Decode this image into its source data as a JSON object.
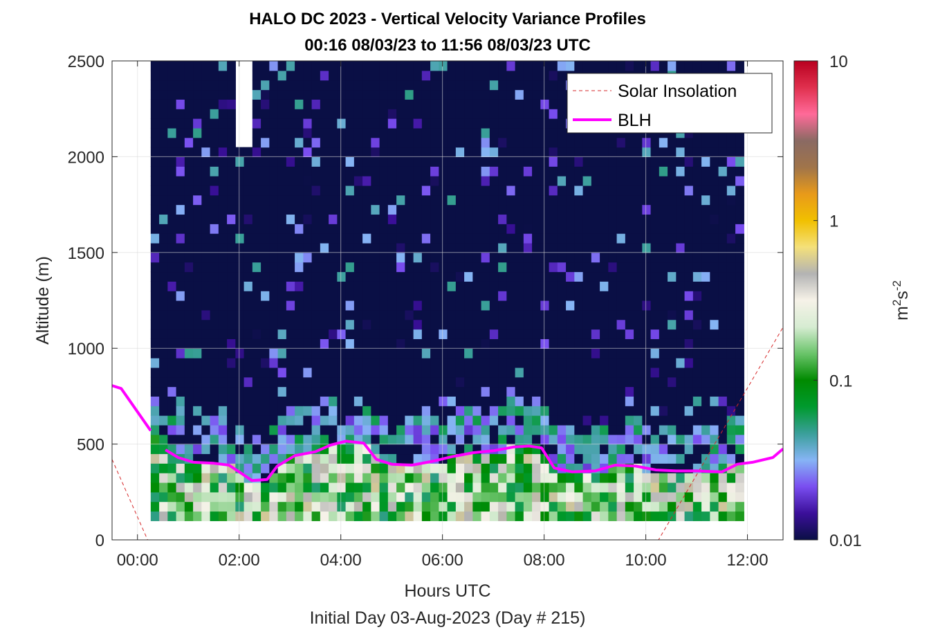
{
  "chart_data": {
    "type": "heatmap",
    "title": "HALO DC 2023 - Vertical Velocity Variance Profiles",
    "subtitle": "00:16 08/03/23 to 11:56 08/03/23  UTC",
    "xlabel": "Hours UTC",
    "xlabel2": "Initial Day 03-Aug-2023 (Day # 215)",
    "ylabel": "Altitude (m)",
    "xlim": [
      -0.5,
      12.7
    ],
    "ylim": [
      0,
      2500
    ],
    "xticks": [
      0,
      2,
      4,
      6,
      8,
      10,
      12
    ],
    "xtick_labels": [
      "00:00",
      "02:00",
      "04:00",
      "06:00",
      "08:00",
      "10:00",
      "12:00"
    ],
    "yticks": [
      0,
      500,
      1000,
      1500,
      2000,
      2500
    ],
    "ytick_labels": [
      "0",
      "500",
      "1000",
      "1500",
      "2000",
      "2500"
    ],
    "grid": true,
    "colorbar": {
      "scale": "log",
      "range": [
        0.01,
        10
      ],
      "ticks": [
        0.01,
        0.1,
        1,
        10
      ],
      "tick_labels": [
        "0.01",
        "0.1",
        "1",
        "10"
      ],
      "label_base": "m",
      "label_exp1": "2",
      "label_mid": "s",
      "label_exp2": "-2",
      "colormap_stops": [
        "#0a0f45",
        "#3b0f9a",
        "#7a4ef0",
        "#86b4f5",
        "#3a9f9a",
        "#009a2e",
        "#008a00",
        "#6ac46a",
        "#d6ecd2",
        "#f6f2e8",
        "#b3b3b3",
        "#f4e07a",
        "#f1c000",
        "#e89a1a",
        "#a0744a",
        "#8a6a63",
        "#ff6a99",
        "#e0304e",
        "#b8001f"
      ]
    },
    "legend": {
      "placement": "top-right",
      "entries": [
        {
          "name": "Solar Insolation",
          "color": "#d62728",
          "style": "dashed"
        },
        {
          "name": "BLH",
          "color": "#ff00ff",
          "style": "solid"
        }
      ]
    },
    "heatmap": {
      "x_start": 0.26,
      "x_end": 11.93,
      "time_step_hours": 0.1667,
      "y_bottom": 100,
      "y_top": 2500,
      "bin_height_m": 50,
      "background_value": 0.01
    },
    "series": [
      {
        "name": "BLH",
        "x": [
          -0.5,
          -0.32,
          0.26,
          0.55,
          0.8,
          1.1,
          1.5,
          1.8,
          2.0,
          2.25,
          2.55,
          2.75,
          3.1,
          3.5,
          3.8,
          4.1,
          4.45,
          4.7,
          5.0,
          5.4,
          5.8,
          6.2,
          6.6,
          7.0,
          7.4,
          7.7,
          7.95,
          8.2,
          8.55,
          9.0,
          9.4,
          9.8,
          10.2,
          10.6,
          11.0,
          11.5,
          11.8,
          12.1,
          12.5,
          12.7
        ],
        "y": [
          805,
          790,
          570,
          470,
          430,
          405,
          400,
          390,
          355,
          310,
          315,
          385,
          440,
          460,
          495,
          515,
          505,
          420,
          395,
          390,
          410,
          435,
          455,
          465,
          485,
          490,
          480,
          375,
          355,
          360,
          390,
          385,
          365,
          360,
          360,
          355,
          395,
          405,
          430,
          475
        ]
      },
      {
        "name": "Solar Insolation",
        "x": [
          -0.5,
          0.2,
          10.25,
          12.7
        ],
        "y": [
          420,
          0,
          0,
          1110
        ]
      }
    ]
  }
}
